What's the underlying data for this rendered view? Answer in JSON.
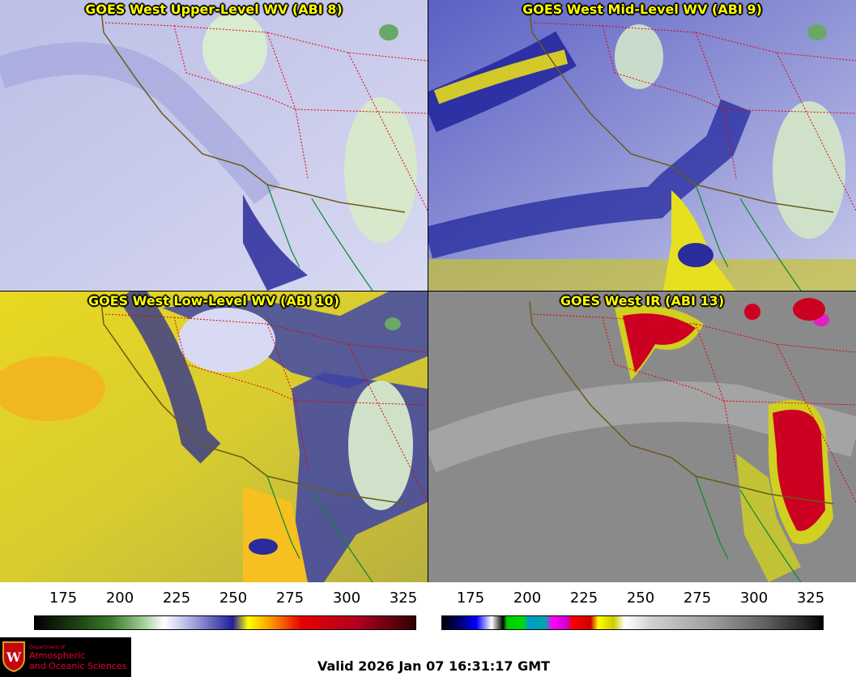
{
  "panels": [
    {
      "title": "GOES West Upper-Level WV (ABI 8)"
    },
    {
      "title": "GOES West Mid-Level WV (ABI 9)"
    },
    {
      "title": "GOES West Low-Level WV (ABI 10)"
    },
    {
      "title": "GOES West IR (ABI 13)"
    }
  ],
  "colorbar_wv": {
    "ticks": [
      "175",
      "200",
      "225",
      "250",
      "275",
      "300",
      "325"
    ]
  },
  "colorbar_ir": {
    "ticks": [
      "175",
      "200",
      "225",
      "250",
      "275",
      "300",
      "325"
    ]
  },
  "logo": {
    "dept": "Department of",
    "line1": "Atmospheric",
    "line2": "and Oceanic Sciences"
  },
  "valid": "Valid 2026 Jan 07 16:31:17 GMT"
}
